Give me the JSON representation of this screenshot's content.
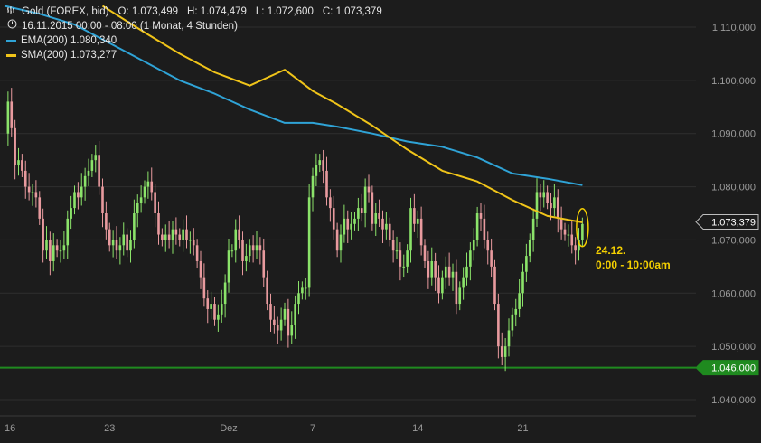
{
  "header": {
    "instrument": "Gold (FOREX, bid)",
    "ohlc": {
      "o_label": "O:",
      "o": "1.073,499",
      "h_label": "H:",
      "h": "1.074,479",
      "l_label": "L:",
      "l": "1.072,600",
      "c_label": "C:",
      "c": "1.073,379"
    },
    "period": "16.11.2015 00:00 - 08:00 (1 Monat, 4 Stunden)",
    "icons": {
      "chart": "bar-chart-icon",
      "clock": "clock-icon"
    }
  },
  "legend": [
    {
      "name": "EMA(200)",
      "value": "1.080,340",
      "color": "#2fa3d6"
    },
    {
      "name": "SMA(200)",
      "value": "1.073,277",
      "color": "#f0c419"
    }
  ],
  "colors": {
    "background": "#1c1c1c",
    "grid": "#2e2e2e",
    "up": "#8be36a",
    "down": "#e89a9e",
    "ema": "#2fa3d6",
    "sma": "#f0c419",
    "support": "#1f8a1f",
    "axis_text": "#9a9a9a",
    "annotation": "#f5d000"
  },
  "chart_data": {
    "type": "candlestick",
    "y_ticks": [
      "1.110,000",
      "1.100,000",
      "1.090,000",
      "1.080,000",
      "1.070,000",
      "1.060,000",
      "1.050,000",
      "1.040,000"
    ],
    "ylim": [
      1037.5,
      1113.5
    ],
    "x_ticks": [
      {
        "label": "16",
        "index": 0
      },
      {
        "label": "23",
        "index": 30
      },
      {
        "label": "Dez",
        "index": 64
      },
      {
        "label": "7",
        "index": 88
      },
      {
        "label": "14",
        "index": 118
      },
      {
        "label": "21",
        "index": 148
      }
    ],
    "price_tag": "1.073,379",
    "support_tag": "1.046,000",
    "support_level": 1046.0,
    "annotation": {
      "line1": "24.12.",
      "line2": "0:00 - 10:00am"
    },
    "candles": [],
    "close_path": [
      [
        0,
        1090
      ],
      [
        1,
        1096
      ],
      [
        2,
        1091
      ],
      [
        3,
        1084
      ],
      [
        4,
        1085
      ],
      [
        5,
        1083
      ],
      [
        6,
        1080
      ],
      [
        7,
        1079
      ],
      [
        8,
        1079
      ],
      [
        9,
        1078
      ],
      [
        10,
        1074
      ],
      [
        11,
        1068
      ],
      [
        12,
        1070
      ],
      [
        13,
        1066
      ],
      [
        14,
        1069
      ],
      [
        15,
        1068
      ],
      [
        16,
        1068
      ],
      [
        17,
        1069
      ],
      [
        18,
        1074
      ],
      [
        19,
        1076
      ],
      [
        20,
        1079
      ],
      [
        21,
        1078
      ],
      [
        22,
        1080
      ],
      [
        23,
        1082
      ],
      [
        24,
        1083
      ],
      [
        25,
        1085
      ],
      [
        26,
        1086
      ],
      [
        27,
        1080
      ],
      [
        28,
        1075
      ],
      [
        29,
        1072
      ],
      [
        30,
        1069
      ],
      [
        31,
        1070
      ],
      [
        32,
        1068
      ],
      [
        33,
        1069
      ],
      [
        34,
        1071
      ],
      [
        35,
        1068
      ],
      [
        36,
        1070
      ],
      [
        37,
        1075
      ],
      [
        38,
        1077
      ],
      [
        39,
        1078
      ],
      [
        40,
        1080
      ],
      [
        41,
        1081
      ],
      [
        42,
        1079
      ],
      [
        43,
        1075
      ],
      [
        44,
        1071
      ],
      [
        45,
        1070
      ],
      [
        46,
        1071
      ],
      [
        47,
        1070
      ],
      [
        48,
        1072
      ],
      [
        49,
        1071
      ],
      [
        50,
        1070
      ],
      [
        51,
        1072
      ],
      [
        52,
        1070
      ],
      [
        53,
        1070
      ],
      [
        54,
        1069
      ],
      [
        55,
        1066
      ],
      [
        56,
        1063
      ],
      [
        57,
        1059
      ],
      [
        58,
        1057
      ],
      [
        59,
        1058
      ],
      [
        60,
        1055
      ],
      [
        61,
        1056
      ],
      [
        62,
        1058
      ],
      [
        63,
        1062
      ],
      [
        64,
        1068
      ],
      [
        65,
        1068
      ],
      [
        66,
        1072
      ],
      [
        67,
        1070
      ],
      [
        68,
        1066
      ],
      [
        69,
        1067
      ],
      [
        70,
        1069
      ],
      [
        71,
        1068
      ],
      [
        72,
        1069
      ],
      [
        73,
        1068
      ],
      [
        74,
        1063
      ],
      [
        75,
        1058
      ],
      [
        76,
        1055
      ],
      [
        77,
        1054
      ],
      [
        78,
        1053
      ],
      [
        79,
        1055
      ],
      [
        80,
        1057
      ],
      [
        81,
        1052
      ],
      [
        82,
        1054
      ],
      [
        83,
        1058
      ],
      [
        84,
        1060
      ],
      [
        85,
        1061
      ],
      [
        86,
        1061
      ],
      [
        87,
        1078
      ],
      [
        88,
        1082
      ],
      [
        89,
        1084
      ],
      [
        90,
        1085
      ],
      [
        91,
        1083
      ],
      [
        92,
        1078
      ],
      [
        93,
        1076
      ],
      [
        94,
        1072
      ],
      [
        95,
        1068
      ],
      [
        96,
        1071
      ],
      [
        97,
        1074
      ],
      [
        98,
        1072
      ],
      [
        99,
        1073
      ],
      [
        100,
        1074
      ],
      [
        101,
        1076
      ],
      [
        102,
        1075
      ],
      [
        103,
        1080
      ],
      [
        104,
        1079
      ],
      [
        105,
        1073
      ],
      [
        106,
        1075
      ],
      [
        107,
        1074
      ],
      [
        108,
        1072
      ],
      [
        109,
        1073
      ],
      [
        110,
        1070
      ],
      [
        111,
        1068
      ],
      [
        112,
        1068
      ],
      [
        113,
        1065
      ],
      [
        114,
        1065
      ],
      [
        115,
        1068
      ],
      [
        116,
        1076
      ],
      [
        117,
        1073
      ],
      [
        118,
        1074
      ],
      [
        119,
        1069
      ],
      [
        120,
        1066
      ],
      [
        121,
        1063
      ],
      [
        122,
        1066
      ],
      [
        123,
        1063
      ],
      [
        124,
        1060
      ],
      [
        125,
        1063
      ],
      [
        126,
        1065
      ],
      [
        127,
        1063
      ],
      [
        128,
        1064
      ],
      [
        129,
        1058
      ],
      [
        130,
        1061
      ],
      [
        131,
        1063
      ],
      [
        132,
        1065
      ],
      [
        133,
        1068
      ],
      [
        134,
        1070
      ],
      [
        135,
        1075
      ],
      [
        136,
        1074
      ],
      [
        137,
        1070
      ],
      [
        138,
        1068
      ],
      [
        139,
        1065
      ],
      [
        140,
        1058
      ],
      [
        141,
        1050
      ],
      [
        142,
        1048
      ],
      [
        143,
        1050
      ],
      [
        144,
        1053
      ],
      [
        145,
        1056
      ],
      [
        146,
        1057
      ],
      [
        147,
        1060
      ],
      [
        148,
        1064
      ],
      [
        149,
        1067
      ],
      [
        150,
        1070
      ],
      [
        151,
        1074
      ],
      [
        152,
        1079
      ],
      [
        153,
        1078
      ],
      [
        154,
        1079
      ],
      [
        155,
        1077
      ],
      [
        156,
        1076
      ],
      [
        157,
        1078
      ],
      [
        158,
        1074
      ],
      [
        159,
        1072
      ],
      [
        160,
        1071
      ],
      [
        161,
        1071
      ],
      [
        162,
        1069
      ],
      [
        163,
        1068
      ],
      [
        164,
        1070
      ],
      [
        165,
        1073
      ]
    ],
    "ema_path": [
      [
        0,
        1114
      ],
      [
        10,
        1112.5
      ],
      [
        20,
        1110.5
      ],
      [
        30,
        1107
      ],
      [
        40,
        1103.5
      ],
      [
        50,
        1100
      ],
      [
        60,
        1097.5
      ],
      [
        70,
        1094.5
      ],
      [
        80,
        1092
      ],
      [
        88,
        1092
      ],
      [
        95,
        1091.3
      ],
      [
        105,
        1090
      ],
      [
        115,
        1088.5
      ],
      [
        125,
        1087.5
      ],
      [
        135,
        1085.5
      ],
      [
        145,
        1082.5
      ],
      [
        155,
        1081.5
      ],
      [
        165,
        1080.3
      ]
    ],
    "sma_path": [
      [
        28,
        1114
      ],
      [
        40,
        1109
      ],
      [
        50,
        1105
      ],
      [
        60,
        1101.5
      ],
      [
        70,
        1099
      ],
      [
        80,
        1102
      ],
      [
        88,
        1098
      ],
      [
        95,
        1095.5
      ],
      [
        105,
        1091.5
      ],
      [
        115,
        1087
      ],
      [
        125,
        1083
      ],
      [
        135,
        1081
      ],
      [
        145,
        1077.5
      ],
      [
        155,
        1074.5
      ],
      [
        165,
        1073.3
      ]
    ]
  }
}
